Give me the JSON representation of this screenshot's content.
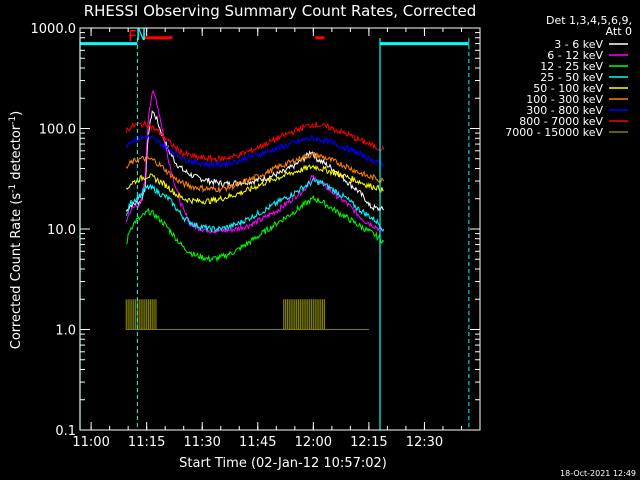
{
  "chart_data": {
    "type": "line",
    "title": "RHESSI Observing Summary Count Rates, Corrected",
    "xlabel": "Start Time (02-Jan-12 10:57:02)",
    "ylabel_main": "Corrected Count Rate (s",
    "ylabel_sup1": "-1",
    "ylabel_mid": " detector",
    "ylabel_sup2": "-1",
    "ylabel_end": ")",
    "yscale": "log",
    "ylim": [
      0.1,
      1000
    ],
    "xlim_minutes": [
      0,
      108
    ],
    "x_ticks": [
      {
        "label": "11:00",
        "min": 3
      },
      {
        "label": "11:15",
        "min": 18
      },
      {
        "label": "11:30",
        "min": 33
      },
      {
        "label": "11:45",
        "min": 48
      },
      {
        "label": "12:00",
        "min": 63
      },
      {
        "label": "12:15",
        "min": 78
      },
      {
        "label": "12:30",
        "min": 93
      }
    ],
    "y_ticks": [
      {
        "label": "0.1",
        "value": 0.1
      },
      {
        "label": "1.0",
        "value": 1
      },
      {
        "label": "10.0",
        "value": 10
      },
      {
        "label": "100.0",
        "value": 100
      },
      {
        "label": "1000.0",
        "value": 1000
      }
    ],
    "legend_header": [
      "Det 1,3,4,5,6,9,",
      "Att 0"
    ],
    "series": [
      {
        "name": "3 - 6 keV",
        "color": "#ffffff",
        "points": [
          [
            12.5,
            15
          ],
          [
            13.5,
            17
          ],
          [
            15,
            18
          ],
          [
            16.5,
            19
          ],
          [
            17.5,
            25
          ],
          [
            18.5,
            90
          ],
          [
            19.5,
            150
          ],
          [
            20.5,
            130
          ],
          [
            22,
            90
          ],
          [
            24,
            60
          ],
          [
            26,
            45
          ],
          [
            28,
            38
          ],
          [
            31,
            33
          ],
          [
            35,
            30
          ],
          [
            39,
            28
          ],
          [
            43,
            29
          ],
          [
            47,
            30
          ],
          [
            51,
            33
          ],
          [
            55,
            37
          ],
          [
            58,
            43
          ],
          [
            61,
            52
          ],
          [
            62.5,
            60
          ],
          [
            64,
            50
          ],
          [
            66,
            45
          ],
          [
            69,
            38
          ],
          [
            72,
            30
          ],
          [
            75,
            24
          ],
          [
            77.5,
            19
          ],
          [
            78,
            17
          ],
          [
            80,
            16
          ],
          [
            82,
            15.5
          ]
        ]
      },
      {
        "name": "6 - 12 keV",
        "color": "#ff00ff",
        "points": [
          [
            12.5,
            12
          ],
          [
            13.5,
            15
          ],
          [
            15,
            17
          ],
          [
            16.5,
            18
          ],
          [
            17.5,
            30
          ],
          [
            18.5,
            140
          ],
          [
            19.5,
            230
          ],
          [
            20.5,
            200
          ],
          [
            22,
            110
          ],
          [
            23,
            70
          ],
          [
            24.5,
            40
          ],
          [
            26,
            25
          ],
          [
            28,
            15
          ],
          [
            30,
            11
          ],
          [
            33,
            10
          ],
          [
            38,
            9.5
          ],
          [
            42,
            10
          ],
          [
            46,
            11
          ],
          [
            50,
            13
          ],
          [
            54,
            16
          ],
          [
            58,
            21
          ],
          [
            61,
            26
          ],
          [
            62.5,
            33
          ],
          [
            64,
            30
          ],
          [
            66,
            27
          ],
          [
            69,
            22
          ],
          [
            72,
            18
          ],
          [
            75,
            14
          ],
          [
            77,
            12
          ],
          [
            79,
            11
          ],
          [
            82,
            9.5
          ]
        ]
      },
      {
        "name": "12 - 25 keV",
        "color": "#00ff00",
        "points": [
          [
            12.5,
            7
          ],
          [
            13.5,
            10
          ],
          [
            15,
            12
          ],
          [
            16.5,
            13
          ],
          [
            17.5,
            14
          ],
          [
            18.5,
            15
          ],
          [
            20,
            14
          ],
          [
            22,
            12
          ],
          [
            24,
            10
          ],
          [
            26,
            8
          ],
          [
            28,
            6.5
          ],
          [
            31,
            5.5
          ],
          [
            35,
            5
          ],
          [
            38,
            5.2
          ],
          [
            42,
            6
          ],
          [
            46,
            7.5
          ],
          [
            50,
            9.5
          ],
          [
            54,
            12
          ],
          [
            58,
            15
          ],
          [
            61,
            18
          ],
          [
            63,
            20
          ],
          [
            65,
            19
          ],
          [
            68,
            16
          ],
          [
            72,
            13
          ],
          [
            75,
            11
          ],
          [
            78,
            9.5
          ],
          [
            80,
            8.5
          ],
          [
            82,
            7.5
          ]
        ]
      },
      {
        "name": "25 - 50 keV",
        "color": "#00ffff",
        "points": [
          [
            12.5,
            13
          ],
          [
            13.5,
            18
          ],
          [
            15,
            20
          ],
          [
            16.5,
            22
          ],
          [
            17.5,
            25
          ],
          [
            18.5,
            26
          ],
          [
            20,
            25
          ],
          [
            22,
            22
          ],
          [
            24,
            20
          ],
          [
            26,
            16
          ],
          [
            28,
            13
          ],
          [
            31,
            11
          ],
          [
            35,
            10
          ],
          [
            38,
            10
          ],
          [
            42,
            11
          ],
          [
            46,
            13
          ],
          [
            50,
            15.5
          ],
          [
            54,
            19
          ],
          [
            58,
            23
          ],
          [
            61,
            27
          ],
          [
            63,
            30
          ],
          [
            65,
            29
          ],
          [
            68,
            25
          ],
          [
            72,
            20
          ],
          [
            75,
            16
          ],
          [
            78,
            13.5
          ],
          [
            80,
            12
          ],
          [
            82,
            10
          ]
        ]
      },
      {
        "name": "50 - 100 keV",
        "color": "#ffff00",
        "points": [
          [
            12.5,
            24
          ],
          [
            13.5,
            28
          ],
          [
            15,
            30
          ],
          [
            16.5,
            32
          ],
          [
            17.5,
            33
          ],
          [
            18.5,
            34
          ],
          [
            20,
            32
          ],
          [
            22,
            29
          ],
          [
            24,
            26
          ],
          [
            26,
            22
          ],
          [
            28,
            20
          ],
          [
            31,
            19
          ],
          [
            35,
            19
          ],
          [
            38,
            20
          ],
          [
            42,
            22
          ],
          [
            46,
            25
          ],
          [
            50,
            29
          ],
          [
            54,
            33
          ],
          [
            58,
            37
          ],
          [
            61,
            40
          ],
          [
            63,
            42
          ],
          [
            65,
            40
          ],
          [
            68,
            37
          ],
          [
            72,
            33
          ],
          [
            75,
            30
          ],
          [
            78,
            27
          ],
          [
            80,
            26
          ],
          [
            82,
            24
          ]
        ]
      },
      {
        "name": "100 - 300 keV",
        "color": "#ff8000",
        "points": [
          [
            12.5,
            40
          ],
          [
            13.5,
            45
          ],
          [
            15,
            48
          ],
          [
            16.5,
            50
          ],
          [
            17.5,
            50
          ],
          [
            18.5,
            50
          ],
          [
            20,
            48
          ],
          [
            22,
            42
          ],
          [
            24,
            36
          ],
          [
            26,
            31
          ],
          [
            28,
            28
          ],
          [
            31,
            26
          ],
          [
            35,
            25
          ],
          [
            38,
            25
          ],
          [
            42,
            27
          ],
          [
            46,
            31
          ],
          [
            50,
            36
          ],
          [
            54,
            42
          ],
          [
            58,
            48
          ],
          [
            61,
            53
          ],
          [
            63,
            55
          ],
          [
            65,
            53
          ],
          [
            68,
            48
          ],
          [
            72,
            42
          ],
          [
            75,
            37
          ],
          [
            78,
            33
          ],
          [
            80,
            32
          ],
          [
            82,
            30
          ]
        ]
      },
      {
        "name": "300 - 800 keV",
        "color": "#0000ff",
        "points": [
          [
            12.5,
            68
          ],
          [
            13.5,
            75
          ],
          [
            15,
            78
          ],
          [
            16.5,
            80
          ],
          [
            17.5,
            82
          ],
          [
            18.5,
            82
          ],
          [
            20,
            78
          ],
          [
            22,
            70
          ],
          [
            24,
            62
          ],
          [
            26,
            56
          ],
          [
            28,
            50
          ],
          [
            31,
            46
          ],
          [
            35,
            44
          ],
          [
            38,
            44
          ],
          [
            42,
            47
          ],
          [
            46,
            52
          ],
          [
            50,
            58
          ],
          [
            54,
            65
          ],
          [
            58,
            72
          ],
          [
            61,
            78
          ],
          [
            63,
            80
          ],
          [
            65,
            78
          ],
          [
            68,
            72
          ],
          [
            72,
            64
          ],
          [
            75,
            57
          ],
          [
            78,
            50
          ],
          [
            80,
            47
          ],
          [
            82,
            44
          ]
        ]
      },
      {
        "name": "800 - 7000 keV",
        "color": "#ff0000",
        "points": [
          [
            12.5,
            95
          ],
          [
            13.5,
            102
          ],
          [
            15,
            108
          ],
          [
            16.5,
            110
          ],
          [
            17.5,
            110
          ],
          [
            18.5,
            108
          ],
          [
            20,
            100
          ],
          [
            22,
            88
          ],
          [
            24,
            74
          ],
          [
            26,
            63
          ],
          [
            28,
            56
          ],
          [
            31,
            52
          ],
          [
            35,
            50
          ],
          [
            38,
            50
          ],
          [
            42,
            53
          ],
          [
            46,
            60
          ],
          [
            50,
            70
          ],
          [
            54,
            82
          ],
          [
            58,
            95
          ],
          [
            61,
            105
          ],
          [
            63,
            110
          ],
          [
            65,
            108
          ],
          [
            68,
            100
          ],
          [
            72,
            88
          ],
          [
            75,
            78
          ],
          [
            78,
            70
          ],
          [
            80,
            65
          ],
          [
            82,
            62
          ]
        ]
      },
      {
        "name": "7000 - 15000 keV",
        "color": "#808000",
        "points": [
          [
            12.5,
            1
          ],
          [
            15,
            1
          ],
          [
            18,
            1
          ],
          [
            20,
            1
          ],
          [
            23,
            1
          ],
          [
            26,
            1
          ],
          [
            30,
            1
          ],
          [
            35,
            1
          ],
          [
            40,
            1
          ],
          [
            45,
            1
          ],
          [
            50,
            1
          ],
          [
            55,
            1
          ],
          [
            60,
            1
          ],
          [
            65,
            1
          ],
          [
            70,
            1
          ],
          [
            75,
            1
          ],
          [
            78,
            1
          ]
        ]
      }
    ],
    "annotations": {
      "saa_label": "N",
      "flare_label": "F",
      "timestamp": "18-Oct-2021 12:49"
    }
  }
}
